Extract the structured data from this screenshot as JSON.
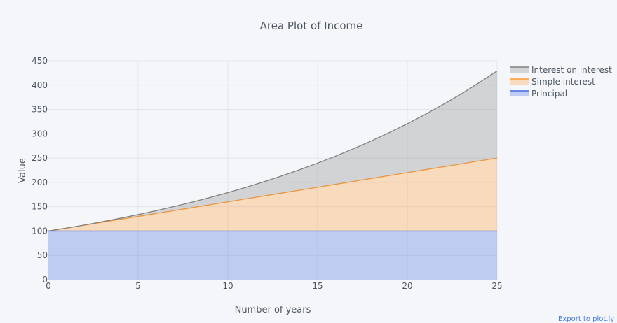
{
  "chart_data": {
    "type": "area",
    "title": "Area Plot of Income",
    "xlabel": "Number of years",
    "ylabel": "Value",
    "xlim": [
      0,
      25
    ],
    "ylim": [
      0,
      450
    ],
    "x_ticks": [
      0,
      5,
      10,
      15,
      20,
      25
    ],
    "y_ticks": [
      0,
      50,
      100,
      150,
      200,
      250,
      300,
      350,
      400,
      450
    ],
    "grid": true,
    "stacked": true,
    "legend_position": "top-right",
    "x": [
      0,
      1,
      2,
      3,
      4,
      5,
      6,
      7,
      8,
      9,
      10,
      11,
      12,
      13,
      14,
      15,
      16,
      17,
      18,
      19,
      20,
      21,
      22,
      23,
      24,
      25
    ],
    "series": [
      {
        "name": "Principal",
        "color": "#4169e1",
        "values": [
          100,
          100,
          100,
          100,
          100,
          100,
          100,
          100,
          100,
          100,
          100,
          100,
          100,
          100,
          100,
          100,
          100,
          100,
          100,
          100,
          100,
          100,
          100,
          100,
          100,
          100
        ]
      },
      {
        "name": "Simple interest",
        "color": "#ff9933",
        "values": [
          0,
          6,
          12,
          18,
          24,
          30,
          36,
          42,
          48,
          54,
          60,
          66,
          72,
          78,
          84,
          90,
          96,
          102,
          108,
          114,
          120,
          126,
          132,
          138,
          144,
          150
        ]
      },
      {
        "name": "Interest on interest",
        "color": "#808080",
        "values": [
          0,
          0,
          0.36,
          1.1,
          2.25,
          3.82,
          5.85,
          8.36,
          11.38,
          14.95,
          19.08,
          23.83,
          29.22,
          35.29,
          42.09,
          49.66,
          58.04,
          67.28,
          77.43,
          88.56,
          100.71,
          113.96,
          128.37,
          144.02,
          160.99,
          179.19
        ]
      }
    ],
    "legend_order": [
      "Interest on interest",
      "Simple interest",
      "Principal"
    ],
    "export_link": "Export to plot.ly »"
  }
}
